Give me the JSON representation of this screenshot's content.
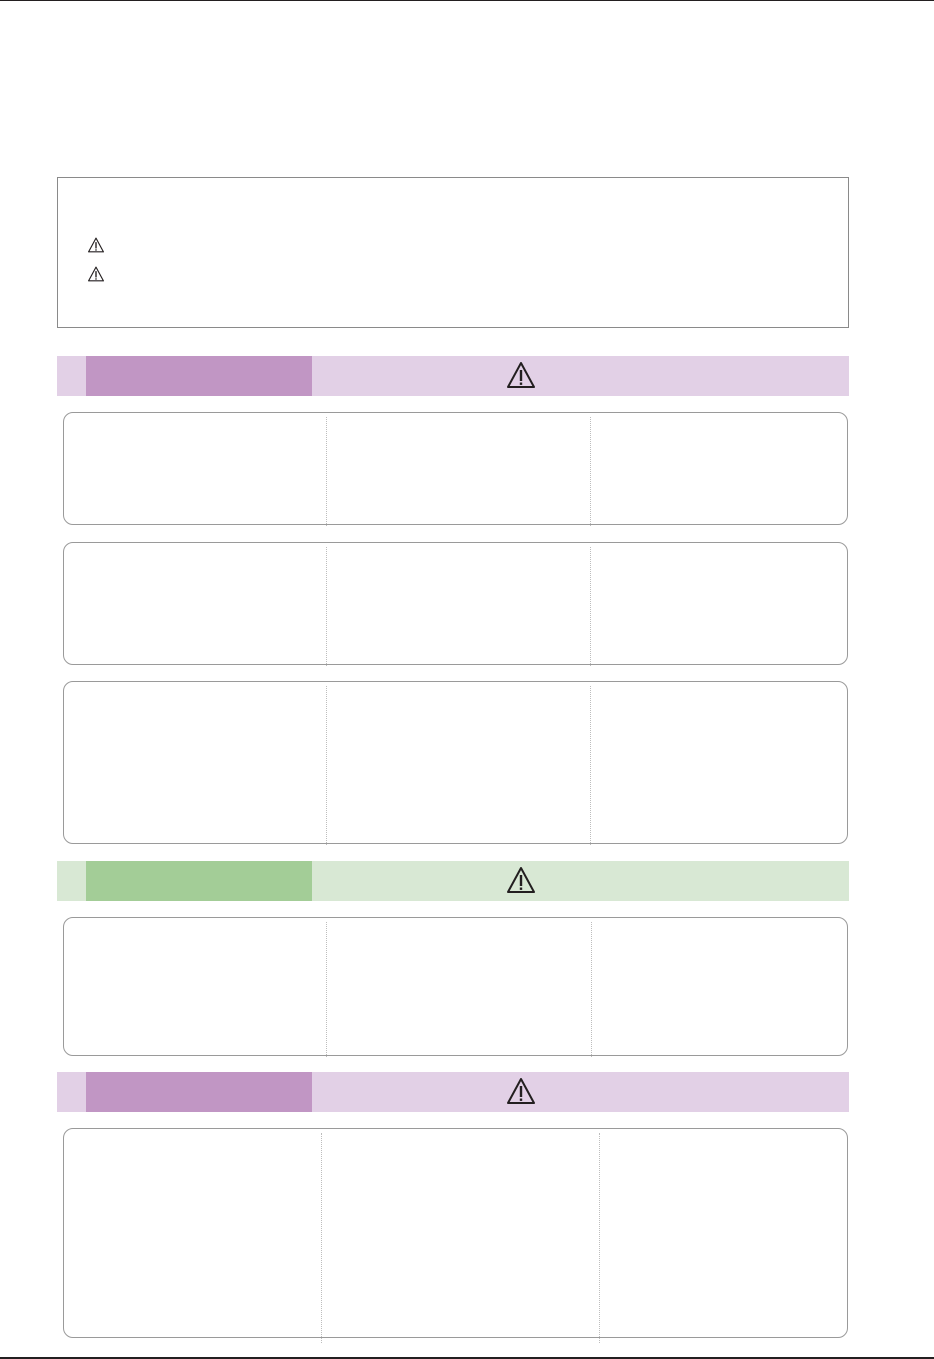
{
  "colors": {
    "purple_band": "#e2d0e6",
    "purple_tab": "#c196c4",
    "green_band": "#d8e8d4",
    "green_tab": "#a3cd97",
    "rule": "#231f20",
    "box_border": "#9a9a9a"
  },
  "icons": {
    "notice": "warning-triangle-icon",
    "section": "warning-triangle-icon"
  },
  "sections": [
    {
      "color": "purple",
      "boxes": 3
    },
    {
      "color": "green",
      "boxes": 1
    },
    {
      "color": "purple",
      "boxes": 1
    }
  ]
}
